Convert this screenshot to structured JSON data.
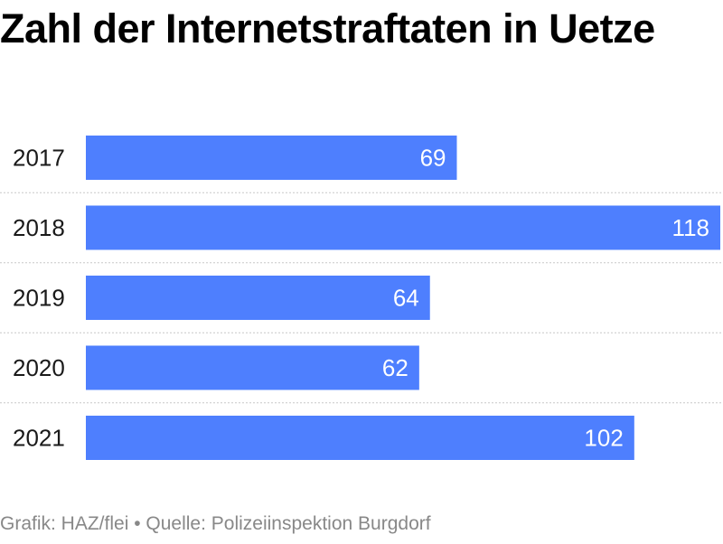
{
  "chart_data": {
    "type": "bar",
    "orientation": "horizontal",
    "title": "Zahl der Internetstraftaten in Uetze",
    "categories": [
      "2017",
      "2018",
      "2019",
      "2020",
      "2021"
    ],
    "values": [
      69,
      118,
      64,
      62,
      102
    ],
    "xlim": [
      0,
      118
    ],
    "grid": false,
    "bar_color": "#4e7ffe"
  },
  "footer": {
    "credit": "Grafik: HAZ/flei",
    "separator": "•",
    "source": "Quelle: Polizeiinspektion Burgdorf"
  }
}
